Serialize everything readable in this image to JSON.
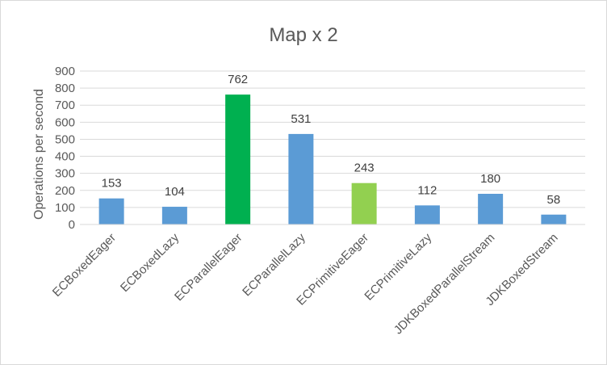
{
  "chart_data": {
    "type": "bar",
    "title": "Map x 2",
    "xlabel": "",
    "ylabel": "Operations per second",
    "categories": [
      "ECBoxedEager",
      "ECBoxedLazy",
      "ECParallelEager",
      "ECParallelLazy",
      "ECPrimitiveEager",
      "ECPrimitiveLazy",
      "JDKBoxedParallelStream",
      "JDKBoxedStream"
    ],
    "values": [
      153,
      104,
      762,
      531,
      243,
      112,
      180,
      58
    ],
    "data_labels": [
      "153",
      "104",
      "762",
      "531",
      "243",
      "112",
      "180",
      "58"
    ],
    "bar_colors": [
      "#5b9bd5",
      "#5b9bd5",
      "#00b050",
      "#5b9bd5",
      "#92d050",
      "#5b9bd5",
      "#5b9bd5",
      "#5b9bd5"
    ],
    "ylim": [
      0,
      900
    ],
    "yticks": [
      0,
      100,
      200,
      300,
      400,
      500,
      600,
      700,
      800,
      900
    ],
    "ytick_labels": [
      "0",
      "100",
      "200",
      "300",
      "400",
      "500",
      "600",
      "700",
      "800",
      "900"
    ],
    "grid": true,
    "legend": "none",
    "colors": {
      "gridline": "#d9d9d9",
      "axis": "#d9d9d9"
    }
  }
}
